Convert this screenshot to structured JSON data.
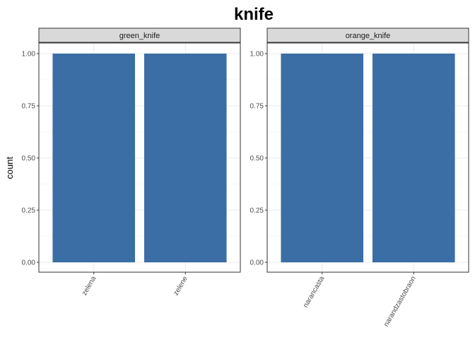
{
  "chart_data": {
    "type": "bar",
    "title": "knife",
    "xlabel": "",
    "ylabel": "count",
    "ylim": [
      0,
      1.0
    ],
    "yticks": [
      "0.00",
      "0.25",
      "0.50",
      "0.75",
      "1.00"
    ],
    "ytick_values": [
      0,
      0.25,
      0.5,
      0.75,
      1.0
    ],
    "grid": true,
    "bar_color": "#3A6EA5",
    "strip_color": "#D9D9D9",
    "facets": [
      {
        "label": "green_knife",
        "categories": [
          "zelena",
          "zelene"
        ],
        "values": [
          1,
          1
        ]
      },
      {
        "label": "orange_knife",
        "categories": [
          "narancasta",
          "narandzastobraon"
        ],
        "values": [
          1,
          1
        ]
      }
    ]
  }
}
